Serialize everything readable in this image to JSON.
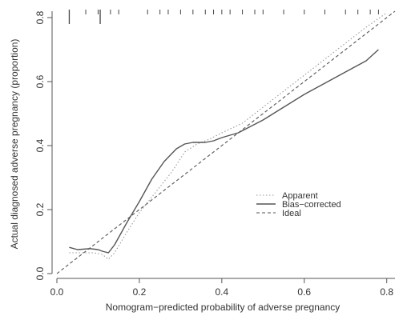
{
  "chart_data": {
    "type": "line",
    "xlabel": "Nomogram−predicted probability of adverse pregnancy",
    "ylabel": "Actual diagnosed adverse pregnancy (proportion)",
    "xlim": [
      0.0,
      0.82
    ],
    "ylim": [
      0.0,
      0.82
    ],
    "x_ticks": [
      0.0,
      0.2,
      0.4,
      0.6,
      0.8
    ],
    "x_tick_labels": [
      "0.0",
      "0.2",
      "0.4",
      "0.6",
      "0.8"
    ],
    "y_ticks": [
      0.0,
      0.2,
      0.4,
      0.6,
      0.8
    ],
    "y_tick_labels": [
      "0.0",
      "0.2",
      "0.4",
      "0.6",
      "0.8"
    ],
    "grid": false,
    "legend_position": "center-right",
    "rug_ticks": [
      0.03,
      0.07,
      0.1,
      0.105,
      0.13,
      0.15,
      0.22,
      0.25,
      0.27,
      0.3,
      0.33,
      0.36,
      0.38,
      0.4,
      0.42,
      0.45,
      0.48,
      0.5,
      0.55,
      0.6,
      0.65,
      0.7,
      0.73,
      0.76,
      0.78
    ],
    "rug_long": [
      0.03,
      0.105
    ],
    "series": [
      {
        "name": "Apparent",
        "style": "dotted",
        "color": "#999999",
        "x": [
          0.03,
          0.06,
          0.09,
          0.11,
          0.125,
          0.14,
          0.17,
          0.2,
          0.24,
          0.28,
          0.31,
          0.34,
          0.37,
          0.4,
          0.45,
          0.5,
          0.55,
          0.6,
          0.65,
          0.7,
          0.75,
          0.8
        ],
        "y": [
          0.065,
          0.065,
          0.065,
          0.06,
          0.045,
          0.065,
          0.13,
          0.19,
          0.255,
          0.32,
          0.38,
          0.405,
          0.42,
          0.44,
          0.47,
          0.52,
          0.57,
          0.62,
          0.67,
          0.72,
          0.77,
          0.815
        ]
      },
      {
        "name": "Bias−corrected",
        "style": "solid",
        "color": "#555555",
        "x": [
          0.03,
          0.05,
          0.08,
          0.1,
          0.11,
          0.125,
          0.14,
          0.17,
          0.2,
          0.23,
          0.26,
          0.29,
          0.31,
          0.33,
          0.36,
          0.38,
          0.4,
          0.44,
          0.5,
          0.55,
          0.6,
          0.65,
          0.7,
          0.75,
          0.78
        ],
        "y": [
          0.082,
          0.075,
          0.078,
          0.075,
          0.07,
          0.065,
          0.09,
          0.16,
          0.225,
          0.295,
          0.35,
          0.39,
          0.405,
          0.41,
          0.41,
          0.415,
          0.425,
          0.44,
          0.48,
          0.52,
          0.56,
          0.595,
          0.63,
          0.665,
          0.7
        ]
      },
      {
        "name": "Ideal",
        "style": "dashed",
        "color": "#555555",
        "x": [
          0.0,
          0.82
        ],
        "y": [
          0.0,
          0.82
        ]
      }
    ]
  }
}
